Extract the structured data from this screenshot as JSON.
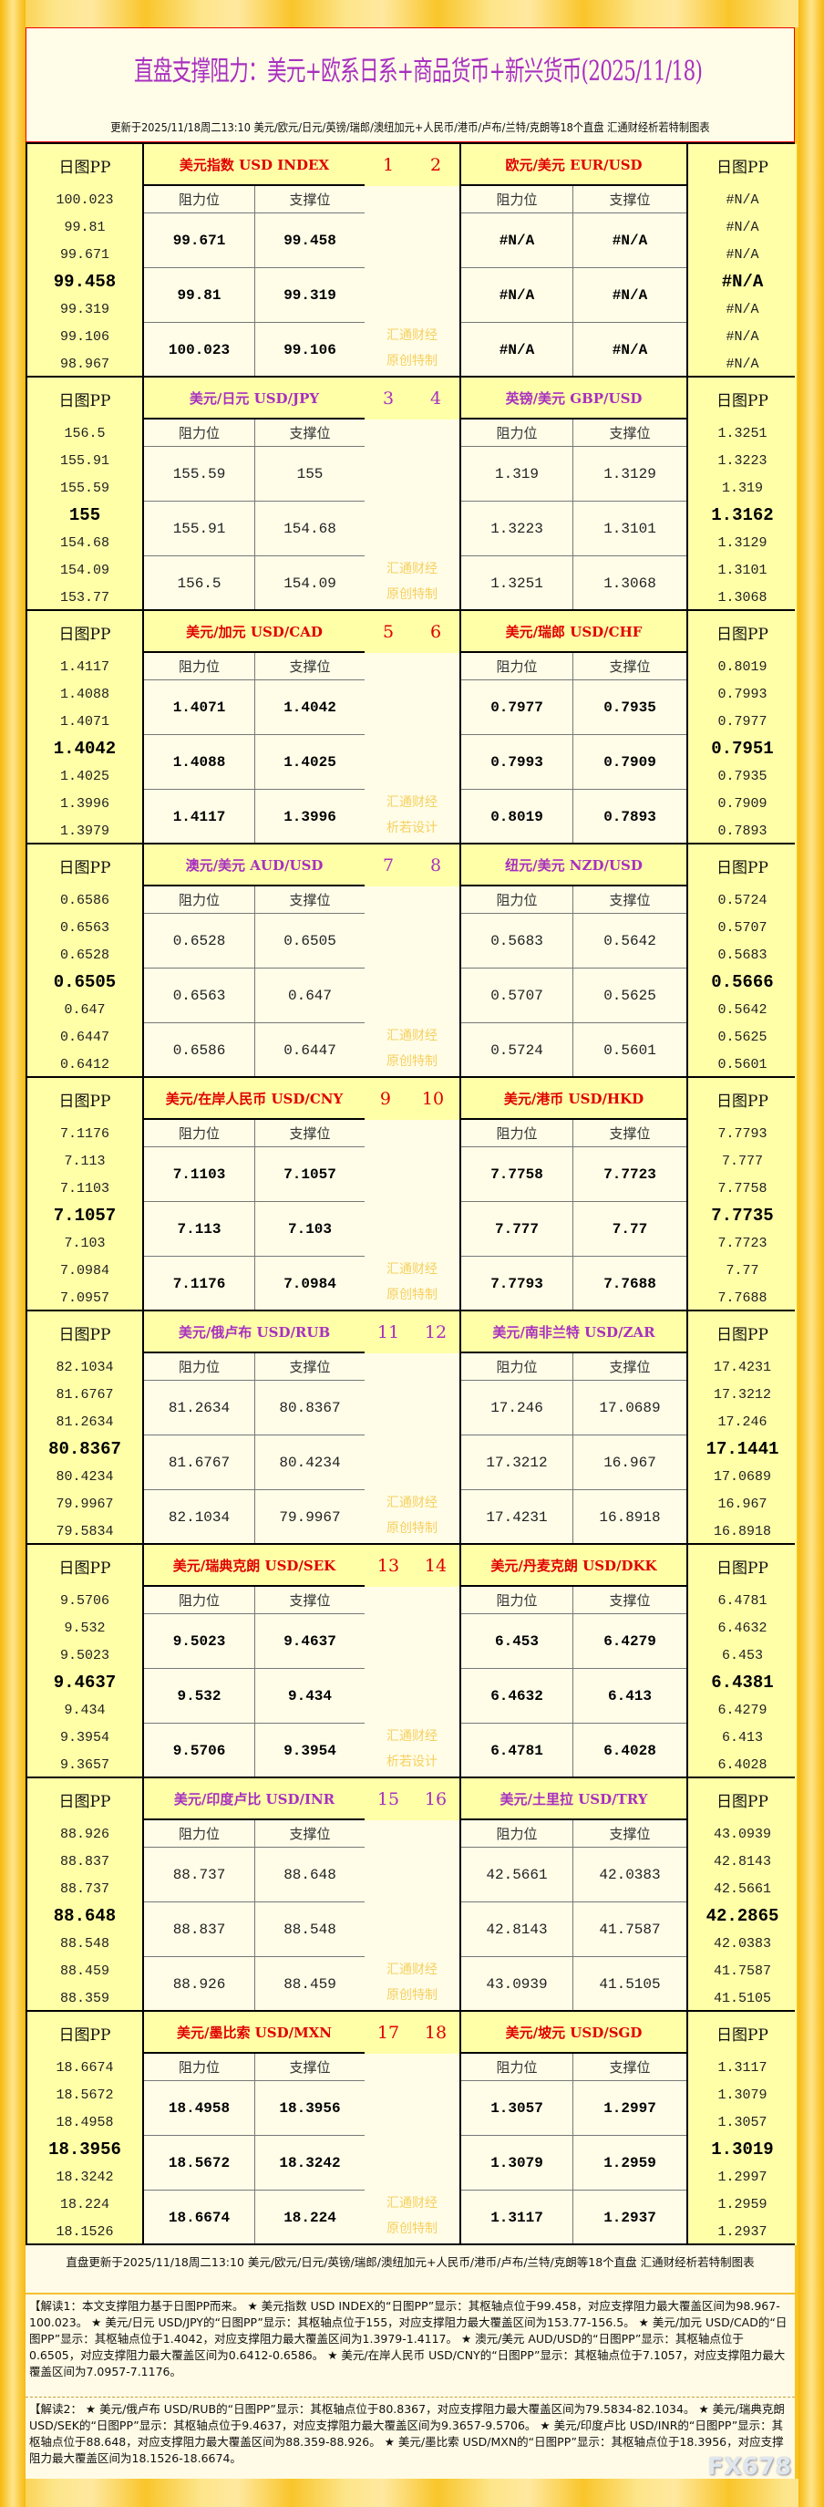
{
  "title": "直盘支撑阻力：美元+欧系日系+商品货币+新兴货币(2025/11/18)",
  "subtitle": "更新于2025/11/18周二13:10 美元/欧元/日元/英镑/瑞郎/澳纽加元+人民币/港币/卢布/兰特/克朗等18个直盘 汇通财经析若特制图表",
  "labels": {
    "pp": "日图PP",
    "res": "阻力位",
    "sup": "支撑位",
    "wm1": "汇通财经"
  },
  "colors": {
    "purple": "#a830c0",
    "red": "#e00000"
  },
  "blocks": [
    {
      "n1": "1",
      "n2": "2",
      "color": "red",
      "wm2": "原创特制",
      "left": {
        "title": "美元指数 USD INDEX",
        "pp": [
          "100.023",
          "99.81",
          "99.671",
          "99.458",
          "99.319",
          "99.106",
          "98.967"
        ],
        "rows": [
          [
            "99.671",
            "99.458"
          ],
          [
            "99.81",
            "99.319"
          ],
          [
            "100.023",
            "99.106"
          ]
        ]
      },
      "right": {
        "title": "欧元/美元 EUR/USD",
        "pp": [
          "#N/A",
          "#N/A",
          "#N/A",
          "#N/A",
          "#N/A",
          "#N/A",
          "#N/A"
        ],
        "rows": [
          [
            "#N/A",
            "#N/A"
          ],
          [
            "#N/A",
            "#N/A"
          ],
          [
            "#N/A",
            "#N/A"
          ]
        ]
      }
    },
    {
      "n1": "3",
      "n2": "4",
      "color": "purple",
      "wm2": "原创特制",
      "left": {
        "title": "美元/日元 USD/JPY",
        "pp": [
          "156.5",
          "155.91",
          "155.59",
          "155",
          "154.68",
          "154.09",
          "153.77"
        ],
        "rows": [
          [
            "155.59",
            "155"
          ],
          [
            "155.91",
            "154.68"
          ],
          [
            "156.5",
            "154.09"
          ]
        ]
      },
      "right": {
        "title": "英镑/美元 GBP/USD",
        "pp": [
          "1.3251",
          "1.3223",
          "1.319",
          "1.3162",
          "1.3129",
          "1.3101",
          "1.3068"
        ],
        "rows": [
          [
            "1.319",
            "1.3129"
          ],
          [
            "1.3223",
            "1.3101"
          ],
          [
            "1.3251",
            "1.3068"
          ]
        ]
      }
    },
    {
      "n1": "5",
      "n2": "6",
      "color": "red",
      "wm2": "析若设计",
      "left": {
        "title": "美元/加元 USD/CAD",
        "pp": [
          "1.4117",
          "1.4088",
          "1.4071",
          "1.4042",
          "1.4025",
          "1.3996",
          "1.3979"
        ],
        "rows": [
          [
            "1.4071",
            "1.4042"
          ],
          [
            "1.4088",
            "1.4025"
          ],
          [
            "1.4117",
            "1.3996"
          ]
        ]
      },
      "right": {
        "title": "美元/瑞郎 USD/CHF",
        "pp": [
          "0.8019",
          "0.7993",
          "0.7977",
          "0.7951",
          "0.7935",
          "0.7909",
          "0.7893"
        ],
        "rows": [
          [
            "0.7977",
            "0.7935"
          ],
          [
            "0.7993",
            "0.7909"
          ],
          [
            "0.8019",
            "0.7893"
          ]
        ]
      }
    },
    {
      "n1": "7",
      "n2": "8",
      "color": "purple",
      "wm2": "原创特制",
      "left": {
        "title": "澳元/美元 AUD/USD",
        "pp": [
          "0.6586",
          "0.6563",
          "0.6528",
          "0.6505",
          "0.647",
          "0.6447",
          "0.6412"
        ],
        "rows": [
          [
            "0.6528",
            "0.6505"
          ],
          [
            "0.6563",
            "0.647"
          ],
          [
            "0.6586",
            "0.6447"
          ]
        ]
      },
      "right": {
        "title": "纽元/美元 NZD/USD",
        "pp": [
          "0.5724",
          "0.5707",
          "0.5683",
          "0.5666",
          "0.5642",
          "0.5625",
          "0.5601"
        ],
        "rows": [
          [
            "0.5683",
            "0.5642"
          ],
          [
            "0.5707",
            "0.5625"
          ],
          [
            "0.5724",
            "0.5601"
          ]
        ]
      }
    },
    {
      "n1": "9",
      "n2": "10",
      "color": "red",
      "wm2": "原创特制",
      "left": {
        "title": "美元/在岸人民币 USD/CNY",
        "pp": [
          "7.1176",
          "7.113",
          "7.1103",
          "7.1057",
          "7.103",
          "7.0984",
          "7.0957"
        ],
        "rows": [
          [
            "7.1103",
            "7.1057"
          ],
          [
            "7.113",
            "7.103"
          ],
          [
            "7.1176",
            "7.0984"
          ]
        ]
      },
      "right": {
        "title": "美元/港币 USD/HKD",
        "pp": [
          "7.7793",
          "7.777",
          "7.7758",
          "7.7735",
          "7.7723",
          "7.77",
          "7.7688"
        ],
        "rows": [
          [
            "7.7758",
            "7.7723"
          ],
          [
            "7.777",
            "7.77"
          ],
          [
            "7.7793",
            "7.7688"
          ]
        ]
      }
    },
    {
      "n1": "11",
      "n2": "12",
      "color": "purple",
      "wm2": "原创特制",
      "left": {
        "title": "美元/俄卢布 USD/RUB",
        "pp": [
          "82.1034",
          "81.6767",
          "81.2634",
          "80.8367",
          "80.4234",
          "79.9967",
          "79.5834"
        ],
        "rows": [
          [
            "81.2634",
            "80.8367"
          ],
          [
            "81.6767",
            "80.4234"
          ],
          [
            "82.1034",
            "79.9967"
          ]
        ]
      },
      "right": {
        "title": "美元/南非兰特 USD/ZAR",
        "pp": [
          "17.4231",
          "17.3212",
          "17.246",
          "17.1441",
          "17.0689",
          "16.967",
          "16.8918"
        ],
        "rows": [
          [
            "17.246",
            "17.0689"
          ],
          [
            "17.3212",
            "16.967"
          ],
          [
            "17.4231",
            "16.8918"
          ]
        ]
      }
    },
    {
      "n1": "13",
      "n2": "14",
      "color": "red",
      "wm2": "析若设计",
      "left": {
        "title": "美元/瑞典克朗 USD/SEK",
        "pp": [
          "9.5706",
          "9.532",
          "9.5023",
          "9.4637",
          "9.434",
          "9.3954",
          "9.3657"
        ],
        "rows": [
          [
            "9.5023",
            "9.4637"
          ],
          [
            "9.532",
            "9.434"
          ],
          [
            "9.5706",
            "9.3954"
          ]
        ]
      },
      "right": {
        "title": "美元/丹麦克朗 USD/DKK",
        "pp": [
          "6.4781",
          "6.4632",
          "6.453",
          "6.4381",
          "6.4279",
          "6.413",
          "6.4028"
        ],
        "rows": [
          [
            "6.453",
            "6.4279"
          ],
          [
            "6.4632",
            "6.413"
          ],
          [
            "6.4781",
            "6.4028"
          ]
        ]
      }
    },
    {
      "n1": "15",
      "n2": "16",
      "color": "purple",
      "wm2": "原创特制",
      "left": {
        "title": "美元/印度卢比 USD/INR",
        "pp": [
          "88.926",
          "88.837",
          "88.737",
          "88.648",
          "88.548",
          "88.459",
          "88.359"
        ],
        "rows": [
          [
            "88.737",
            "88.648"
          ],
          [
            "88.837",
            "88.548"
          ],
          [
            "88.926",
            "88.459"
          ]
        ]
      },
      "right": {
        "title": "美元/土里拉 USD/TRY",
        "pp": [
          "43.0939",
          "42.8143",
          "42.5661",
          "42.2865",
          "42.0383",
          "41.7587",
          "41.5105"
        ],
        "rows": [
          [
            "42.5661",
            "42.0383"
          ],
          [
            "42.8143",
            "41.7587"
          ],
          [
            "43.0939",
            "41.5105"
          ]
        ]
      }
    },
    {
      "n1": "17",
      "n2": "18",
      "color": "red",
      "wm2": "原创特制",
      "left": {
        "title": "美元/墨比索 USD/MXN",
        "pp": [
          "18.6674",
          "18.5672",
          "18.4958",
          "18.3956",
          "18.3242",
          "18.224",
          "18.1526"
        ],
        "rows": [
          [
            "18.4958",
            "18.3956"
          ],
          [
            "18.5672",
            "18.3242"
          ],
          [
            "18.6674",
            "18.224"
          ]
        ]
      },
      "right": {
        "title": "美元/坡元 USD/SGD",
        "pp": [
          "1.3117",
          "1.3079",
          "1.3057",
          "1.3019",
          "1.2997",
          "1.2959",
          "1.2937"
        ],
        "rows": [
          [
            "1.3057",
            "1.2997"
          ],
          [
            "1.3079",
            "1.2959"
          ],
          [
            "1.3117",
            "1.2937"
          ]
        ]
      }
    }
  ],
  "footer": {
    "update": "直盘更新于2025/11/18周二13:10 美元/欧元/日元/英镑/瑞郎/澳纽加元+人民币/港币/卢布/兰特/克朗等18个直盘 汇通财经析若特制图表",
    "note1": "【解读1：本文支撑阻力基于日图PP而来。 ★ 美元指数 USD INDEX的“日图PP”显示：其枢轴点位于99.458，对应支撑阻力最大覆盖区间为98.967-100.023。 ★ 美元/日元 USD/JPY的“日图PP”显示：其枢轴点位于155，对应支撑阻力最大覆盖区间为153.77-156.5。 ★ 美元/加元 USD/CAD的“日图PP”显示：其枢轴点位于1.4042，对应支撑阻力最大覆盖区间为1.3979-1.4117。 ★ 澳元/美元 AUD/USD的“日图PP”显示：其枢轴点位于0.6505，对应支撑阻力最大覆盖区间为0.6412-0.6586。 ★ 美元/在岸人民币 USD/CNY的“日图PP”显示：其枢轴点位于7.1057，对应支撑阻力最大覆盖区间为7.0957-7.1176。",
    "note2": "【解读2： ★ 美元/俄卢布 USD/RUB的“日图PP”显示：其枢轴点位于80.8367，对应支撑阻力最大覆盖区间为79.5834-82.1034。 ★ 美元/瑞典克朗 USD/SEK的“日图PP”显示：其枢轴点位于9.4637，对应支撑阻力最大覆盖区间为9.3657-9.5706。 ★ 美元/印度卢比 USD/INR的“日图PP”显示：其枢轴点位于88.648，对应支撑阻力最大覆盖区间为88.359-88.926。 ★ 美元/墨比索 USD/MXN的“日图PP”显示：其枢轴点位于18.3956，对应支撑阻力最大覆盖区间为18.1526-18.6674。",
    "logo": "FX678"
  }
}
